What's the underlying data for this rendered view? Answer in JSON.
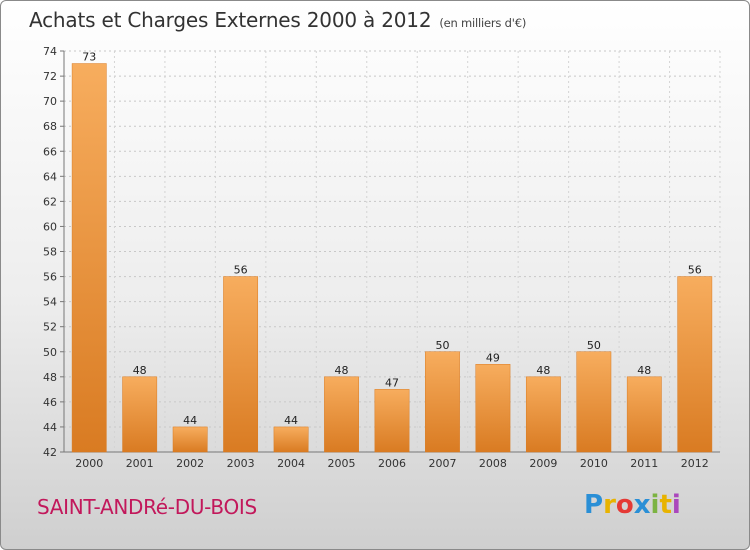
{
  "header": {
    "title": "Achats et Charges Externes 2000 à 2012",
    "unit_note": "(en milliers d'€)"
  },
  "footer": {
    "place": "SAINT-ANDRé-DU-BOIS"
  },
  "brand": {
    "letters": [
      "P",
      "r",
      "o",
      "x",
      "i",
      "t",
      "i"
    ],
    "colors": [
      "#2a8fd6",
      "#e8b300",
      "#e53935",
      "#2a8fd6",
      "#7cb342",
      "#e8b300",
      "#ab47bc"
    ]
  },
  "colors": {
    "bar": "#f0923a",
    "bar_light": "#f7ad5e",
    "bar_dark": "#d97b22"
  },
  "chart_data": {
    "type": "bar",
    "categories": [
      "2000",
      "2001",
      "2002",
      "2003",
      "2004",
      "2005",
      "2006",
      "2007",
      "2008",
      "2009",
      "2010",
      "2011",
      "2012"
    ],
    "values": [
      73,
      48,
      44,
      56,
      44,
      48,
      47,
      50,
      49,
      48,
      50,
      48,
      56
    ],
    "title": "Achats et Charges Externes 2000 à 2012",
    "xlabel": "",
    "ylabel": "",
    "ylim": [
      42,
      74
    ],
    "yticks": [
      42,
      44,
      46,
      48,
      50,
      52,
      54,
      56,
      58,
      60,
      62,
      64,
      66,
      68,
      70,
      72,
      74
    ],
    "grid": true
  }
}
